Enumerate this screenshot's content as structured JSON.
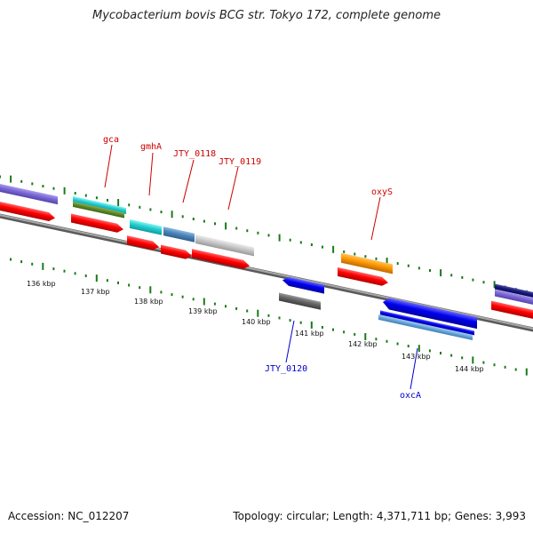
{
  "title": "Mycobacterium bovis BCG str. Tokyo 172, complete genome",
  "accession": "Accession: NC_012207",
  "summary": "Topology: circular; Length: 4,371,711 bp; Genes: 3,993",
  "scale_ticks": [
    "136 kbp",
    "137 kbp",
    "138 kbp",
    "139 kbp",
    "140 kbp",
    "141 kbp",
    "142 kbp",
    "143 kbp",
    "144 kbp"
  ],
  "gene_labels": [
    {
      "name": "gca",
      "color": "#cc0000"
    },
    {
      "name": "gmhA",
      "color": "#cc0000"
    },
    {
      "name": "JTY_0118",
      "color": "#cc0000"
    },
    {
      "name": "JTY_0119",
      "color": "#cc0000"
    },
    {
      "name": "oxyS",
      "color": "#cc0000"
    },
    {
      "name": "JTY_0120",
      "color": "#0000cc"
    },
    {
      "name": "oxcA",
      "color": "#0000cc"
    }
  ],
  "colors": {
    "backbone": "#888888",
    "tick_green": "#1a7a1a",
    "cds_red": "#ff0000",
    "label_forward": "#cc0000",
    "label_reverse": "#0000cc"
  }
}
